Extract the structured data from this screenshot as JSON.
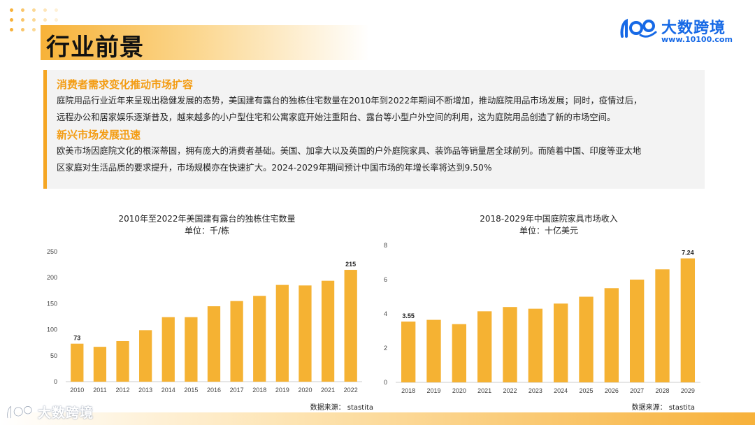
{
  "page": {
    "title": "行业前景"
  },
  "brand": {
    "name": "大数跨境",
    "url": "www.10100.com",
    "color": "#1669e6"
  },
  "colors": {
    "accent": "#f5a623",
    "bar": "#f5b233",
    "heading": "#f39c12"
  },
  "info": {
    "section1": {
      "heading": "消费者需求变化推动市场扩容",
      "line1": "庭院用品行业近年来呈现出稳健发展的态势，美国建有露台的独栋住宅数量在2010年到2022年期间不断增加，推动庭院用品市场发展；同时，疫情过后，",
      "line2": "远程办公和居家娱乐逐渐普及，越来越多的小户型住宅和公寓家庭开始注重阳台、露台等小型户外空间的利用，这为庭院用品创造了新的市场空间。"
    },
    "section2": {
      "heading": "新兴市场发展迅速",
      "line1": "欧美市场因庭院文化的根深蒂固，拥有庞大的消费者基础。美国、加拿大以及英国的户外庭院家具、装饰品等销量居全球前列。而随着中国、印度等亚太地",
      "line2": "区家庭对生活品质的要求提升，市场规模亦在快速扩大。2024-2029年期间预计中国市场的年增长率将达到9.50%"
    }
  },
  "chart_data": [
    {
      "type": "bar",
      "title": "2010年至2022年美国建有露台的独栋住宅数量",
      "subtitle": "单位：千/栋",
      "categories": [
        "2010",
        "2011",
        "2012",
        "2013",
        "2014",
        "2015",
        "2016",
        "2017",
        "2018",
        "2019",
        "2020",
        "2021",
        "2022"
      ],
      "values": [
        73,
        67,
        78,
        99,
        124,
        124,
        145,
        155,
        165,
        186,
        185,
        194,
        215
      ],
      "labeled": {
        "0": "73",
        "12": "215"
      },
      "ylim": [
        0,
        250
      ],
      "yticks": [
        "0",
        "50",
        "100",
        "150",
        "200",
        "250"
      ],
      "source": "数据来源： stastita"
    },
    {
      "type": "bar",
      "title": "2018-2029年中国庭院家具市场收入",
      "subtitle": "单位：十亿美元",
      "categories": [
        "2018",
        "2019",
        "2020",
        "2021",
        "2022",
        "2023",
        "2024",
        "2025",
        "2026",
        "2027",
        "2028",
        "2029"
      ],
      "values": [
        3.55,
        3.65,
        3.4,
        4.15,
        4.4,
        4.3,
        4.6,
        5.0,
        5.5,
        6.0,
        6.6,
        7.24
      ],
      "labeled": {
        "0": "3.55",
        "11": "7.24"
      },
      "ylim": [
        0,
        8
      ],
      "yticks": [
        "0",
        "2",
        "4",
        "6",
        "8"
      ],
      "source": "数据来源： stastita"
    }
  ]
}
